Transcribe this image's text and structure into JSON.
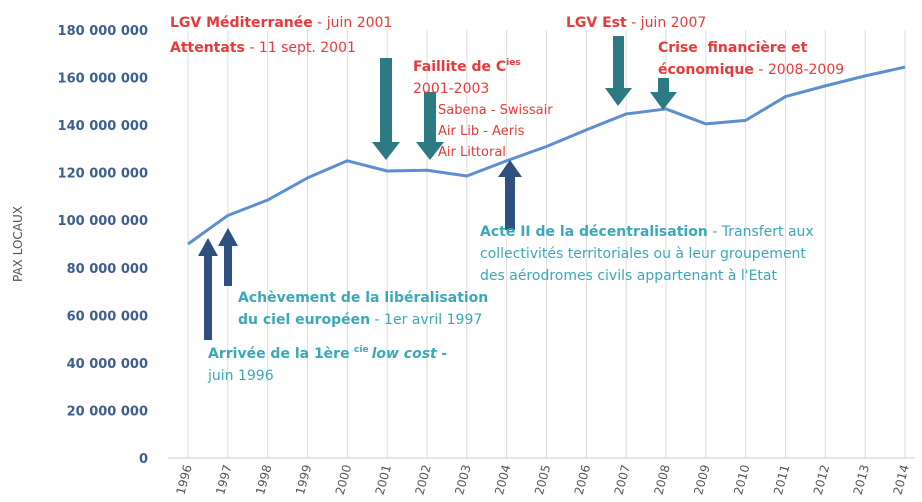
{
  "chart_data": {
    "type": "line",
    "y_label": "PAX LOCAUX",
    "categories": [
      "1996",
      "1997",
      "1998",
      "1999",
      "2000",
      "2001",
      "2002",
      "2003",
      "2004",
      "2005",
      "2006",
      "2007",
      "2008",
      "2009",
      "2010",
      "2011",
      "2012",
      "2013",
      "2014"
    ],
    "values": [
      90000000,
      102000000,
      108500000,
      117800000,
      125000000,
      120700000,
      121000000,
      118600000,
      125000000,
      131000000,
      138000000,
      144700000,
      146800000,
      140500000,
      142000000,
      152000000,
      156500000,
      160700000,
      164400000
    ],
    "color": "#5b8fd2",
    "ylim": [
      0,
      180000000
    ],
    "yticks": [
      0,
      {
        "value": 20000000,
        "label": "20 000 000"
      },
      {
        "value": 40000000,
        "label": "40 000 000"
      },
      {
        "value": 60000000,
        "label": "60 000 000"
      },
      {
        "value": 80000000,
        "label": "80 000 000"
      },
      {
        "value": 100000000,
        "label": "100 000 000"
      },
      {
        "value": 120000000,
        "label": "120 000 000"
      },
      {
        "value": 140000000,
        "label": "140 000 000"
      },
      {
        "value": 160000000,
        "label": "160 000 000"
      },
      {
        "value": 180000000,
        "label": "180 000 000"
      }
    ],
    "grid": true,
    "annotations": [
      {
        "title": "LGV Méditerranée",
        "detail": "- juin 2001"
      },
      {
        "title": "Attentats",
        "detail": "- 11 sept. 2001"
      },
      {
        "title": "Faillite de C",
        "sup": "ies",
        "detail": "2001-2003"
      },
      {
        "lines": [
          "Sabena - Swissair",
          "Air Lib - Aeris",
          "Air Littoral"
        ]
      },
      {
        "title": "LGV Est",
        "detail": "- juin 2007"
      },
      {
        "title": "Crise  financière et",
        "title2": "économique",
        "detail": "- 2008-2009"
      },
      {
        "title": "Acte II de la décentralisation",
        "detail": "- Transfert aux",
        "lines": [
          "collectivités territoriales ou à leur groupement",
          "des aérodromes civils appartenant à l'Etat"
        ]
      },
      {
        "title": "Achèvement de la libéralisation",
        "title2": "du ciel européen",
        "detail": "- 1er avril 1997"
      },
      {
        "title": "Arrivée de la 1ère",
        "sup": "cie",
        "italic": "low cost",
        "detail": "-",
        "detail2": "juin 1996"
      }
    ]
  }
}
